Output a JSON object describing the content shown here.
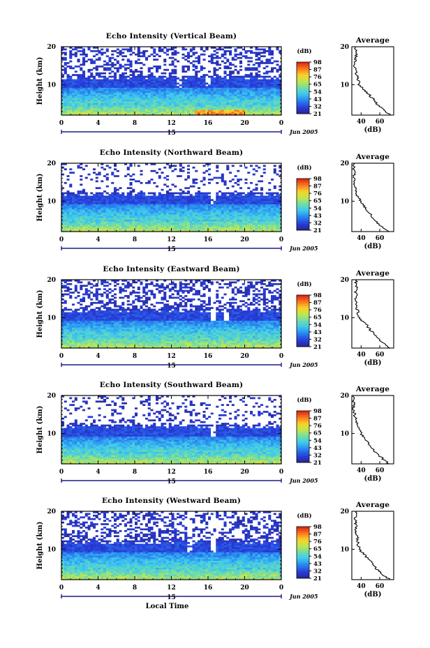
{
  "chart_data": [
    {
      "type": "heatmap",
      "title": "Echo Intensity (Vertical Beam)",
      "ylabel": "Height (km)",
      "xticks": [
        "0",
        "4",
        "8",
        "12",
        "16",
        "20",
        "0"
      ],
      "yticks": [
        "20",
        "10"
      ],
      "xlim": [
        0,
        24
      ],
      "ylim": [
        2,
        20
      ],
      "date_day": "15",
      "date_month": "Jun 2005",
      "colorbar": {
        "unit": "(dB)",
        "ticks": [
          "98",
          "87",
          "76",
          "65",
          "54",
          "43",
          "32",
          "21"
        ]
      },
      "average": {
        "title": "Average",
        "xlabel": "(dB)",
        "xticks": [
          "40",
          "60"
        ],
        "yticks": [
          "20",
          "10"
        ],
        "height_km": [
          2,
          3,
          4,
          5,
          6,
          7,
          8,
          9,
          10,
          11,
          12,
          13,
          14,
          15,
          16,
          17,
          18,
          19,
          20
        ],
        "db": [
          72,
          66,
          61,
          57,
          54,
          50,
          46,
          42,
          38,
          37,
          36,
          35,
          35,
          33,
          34,
          34,
          35,
          34,
          34
        ]
      }
    },
    {
      "type": "heatmap",
      "title": "Echo Intensity (Northward Beam)",
      "ylabel": "Height (km)",
      "xticks": [
        "0",
        "4",
        "8",
        "12",
        "16",
        "20",
        "0"
      ],
      "yticks": [
        "20",
        "10"
      ],
      "xlim": [
        0,
        24
      ],
      "ylim": [
        2,
        20
      ],
      "date_day": "15",
      "date_month": "Jun 2005",
      "colorbar": {
        "unit": "(dB)",
        "ticks": [
          "98",
          "87",
          "76",
          "65",
          "54",
          "43",
          "32",
          "21"
        ]
      },
      "average": {
        "title": "Average",
        "xlabel": "(dB)",
        "xticks": [
          "40",
          "60"
        ],
        "yticks": [
          "20",
          "10"
        ],
        "height_km": [
          2,
          3,
          4,
          5,
          6,
          7,
          8,
          9,
          10,
          11,
          12,
          13,
          14,
          15,
          16,
          17,
          18,
          19,
          20
        ],
        "db": [
          70,
          64,
          59,
          55,
          52,
          48,
          45,
          42,
          39,
          37,
          35,
          34,
          33,
          32,
          32,
          33,
          32,
          32,
          33
        ]
      }
    },
    {
      "type": "heatmap",
      "title": "Echo Intensity (Eastward Beam)",
      "ylabel": "Height (km)",
      "xticks": [
        "0",
        "4",
        "8",
        "12",
        "16",
        "20",
        "0"
      ],
      "yticks": [
        "20",
        "10"
      ],
      "xlim": [
        0,
        24
      ],
      "ylim": [
        2,
        20
      ],
      "date_day": "15",
      "date_month": "Jun 2005",
      "colorbar": {
        "unit": "(dB)",
        "ticks": [
          "98",
          "87",
          "76",
          "65",
          "54",
          "43",
          "32",
          "21"
        ]
      },
      "average": {
        "title": "Average",
        "xlabel": "(dB)",
        "xticks": [
          "40",
          "60"
        ],
        "yticks": [
          "20",
          "10"
        ],
        "height_km": [
          2,
          3,
          4,
          5,
          6,
          7,
          8,
          9,
          10,
          11,
          12,
          13,
          14,
          15,
          16,
          17,
          18,
          19,
          20
        ],
        "db": [
          71,
          65,
          60,
          56,
          53,
          49,
          46,
          42,
          38,
          37,
          36,
          35,
          35,
          34,
          35,
          34,
          35,
          34,
          35
        ]
      }
    },
    {
      "type": "heatmap",
      "title": "Echo Intensity (Southward Beam)",
      "ylabel": "Height (km)",
      "xticks": [
        "0",
        "4",
        "8",
        "12",
        "16",
        "20",
        "0"
      ],
      "yticks": [
        "20",
        "10"
      ],
      "xlim": [
        0,
        24
      ],
      "ylim": [
        2,
        20
      ],
      "date_day": "15",
      "date_month": "Jun 2005",
      "colorbar": {
        "unit": "(dB)",
        "ticks": [
          "98",
          "87",
          "76",
          "65",
          "54",
          "43",
          "32",
          "21"
        ]
      },
      "average": {
        "title": "Average",
        "xlabel": "(dB)",
        "xticks": [
          "40",
          "60"
        ],
        "yticks": [
          "20",
          "10"
        ],
        "height_km": [
          2,
          3,
          4,
          5,
          6,
          7,
          8,
          9,
          10,
          11,
          12,
          13,
          14,
          15,
          16,
          17,
          18,
          19,
          20
        ],
        "db": [
          70,
          65,
          60,
          55,
          52,
          49,
          46,
          43,
          40,
          38,
          36,
          35,
          34,
          33,
          32,
          32,
          32,
          31,
          32
        ]
      }
    },
    {
      "type": "heatmap",
      "title": "Echo Intensity (Westward Beam)",
      "ylabel": "Height (km)",
      "xticks": [
        "0",
        "4",
        "8",
        "12",
        "16",
        "20",
        "0"
      ],
      "yticks": [
        "20",
        "10"
      ],
      "xlim": [
        0,
        24
      ],
      "ylim": [
        2,
        20
      ],
      "date_day": "15",
      "date_month": "Jun 2005",
      "xlabel": "Local Time",
      "colorbar": {
        "unit": "(dB)",
        "ticks": [
          "98",
          "87",
          "76",
          "65",
          "54",
          "43",
          "32",
          "21"
        ]
      },
      "average": {
        "title": "Average",
        "xlabel": "(dB)",
        "xticks": [
          "40",
          "60"
        ],
        "yticks": [
          "20",
          "10"
        ],
        "height_km": [
          2,
          3,
          4,
          5,
          6,
          7,
          8,
          9,
          10,
          11,
          12,
          13,
          14,
          15,
          16,
          17,
          18,
          19,
          20
        ],
        "db": [
          71,
          65,
          60,
          56,
          53,
          49,
          45,
          42,
          38,
          37,
          36,
          36,
          35,
          34,
          35,
          34,
          34,
          34,
          35
        ]
      }
    }
  ]
}
